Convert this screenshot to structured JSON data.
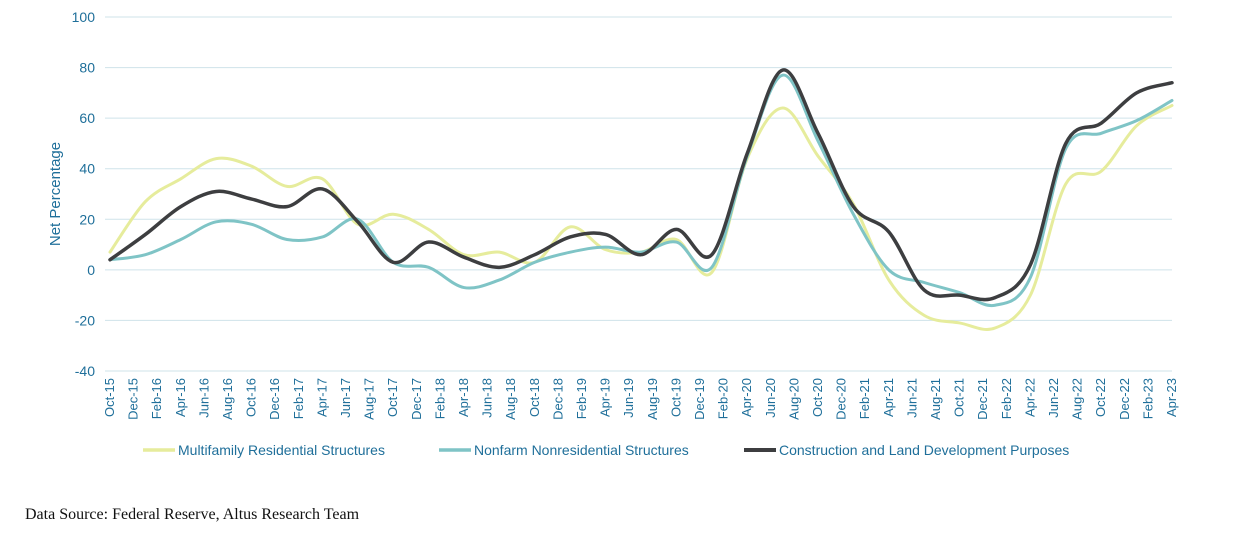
{
  "chart_data": {
    "type": "line",
    "ylabel": "Net Percentage",
    "xlabel": "",
    "ylim": [
      -40,
      100
    ],
    "yticks": [
      100,
      80,
      60,
      40,
      20,
      0,
      -20,
      -40
    ],
    "grid": true,
    "legend_position": "bottom",
    "x": [
      "Oct-15",
      "Nov-15",
      "Dec-15",
      "Jan-16",
      "Feb-16",
      "Mar-16",
      "Apr-16",
      "May-16",
      "Jun-16",
      "Jul-16",
      "Aug-16",
      "Sep-16",
      "Oct-16",
      "Nov-16",
      "Dec-16",
      "Jan-17",
      "Feb-17",
      "Mar-17",
      "Apr-17",
      "May-17",
      "Jun-17",
      "Jul-17",
      "Aug-17",
      "Sep-17",
      "Oct-17",
      "Nov-17",
      "Dec-17",
      "Jan-18",
      "Feb-18",
      "Mar-18",
      "Apr-18",
      "May-18",
      "Jun-18",
      "Jul-18",
      "Aug-18",
      "Sep-18",
      "Oct-18",
      "Nov-18",
      "Dec-18",
      "Jan-19",
      "Feb-19",
      "Mar-19",
      "Apr-19",
      "May-19",
      "Jun-19",
      "Jul-19",
      "Aug-19",
      "Sep-19",
      "Oct-19",
      "Nov-19",
      "Dec-19",
      "Jan-20",
      "Feb-20",
      "Mar-20",
      "Apr-20",
      "May-20",
      "Jun-20",
      "Jul-20",
      "Aug-20",
      "Sep-20",
      "Oct-20",
      "Nov-20",
      "Dec-20",
      "Jan-21",
      "Feb-21",
      "Mar-21",
      "Apr-21",
      "May-21",
      "Jun-21",
      "Jul-21",
      "Aug-21",
      "Sep-21",
      "Oct-21",
      "Nov-21",
      "Dec-21",
      "Jan-22",
      "Feb-22",
      "Mar-22",
      "Apr-22",
      "May-22",
      "Jun-22",
      "Jul-22",
      "Aug-22",
      "Sep-22",
      "Oct-22",
      "Nov-22",
      "Dec-22",
      "Jan-23",
      "Feb-23",
      "Mar-23",
      "Apr-23"
    ],
    "tick_labels": [
      "Oct-15",
      "Dec-15",
      "Feb-16",
      "Apr-16",
      "Jun-16",
      "Aug-16",
      "Oct-16",
      "Dec-16",
      "Feb-17",
      "Apr-17",
      "Jun-17",
      "Aug-17",
      "Oct-17",
      "Dec-17",
      "Feb-18",
      "Apr-18",
      "Jun-18",
      "Aug-18",
      "Oct-18",
      "Dec-18",
      "Feb-19",
      "Apr-19",
      "Jun-19",
      "Aug-19",
      "Oct-19",
      "Dec-19",
      "Feb-20",
      "Apr-20",
      "Jun-20",
      "Aug-20",
      "Oct-20",
      "Dec-20",
      "Feb-21",
      "Apr-21",
      "Jun-21",
      "Aug-21",
      "Oct-21",
      "Dec-21",
      "Feb-22",
      "Apr-22",
      "Jun-22",
      "Aug-22",
      "Oct-22",
      "Dec-22",
      "Feb-23",
      "Apr-23"
    ],
    "series": [
      {
        "name": "Multifamily Residential Structures",
        "color": "#e6ec9c",
        "x": [
          "Oct-15",
          "Jan-16",
          "Apr-16",
          "Jul-16",
          "Oct-16",
          "Jan-17",
          "Apr-17",
          "Jul-17",
          "Oct-17",
          "Jan-18",
          "Apr-18",
          "Jul-18",
          "Oct-18",
          "Jan-19",
          "Apr-19",
          "Jul-19",
          "Oct-19",
          "Jan-20",
          "Apr-20",
          "Jul-20",
          "Oct-20",
          "Jan-21",
          "Apr-21",
          "Jul-21",
          "Oct-21",
          "Jan-22",
          "Apr-22",
          "Jul-22",
          "Oct-22",
          "Jan-23",
          "Apr-23"
        ],
        "values": [
          7,
          27,
          36,
          44,
          41,
          33,
          36,
          18,
          22,
          16,
          6,
          7,
          3,
          17,
          8,
          7,
          12,
          -1,
          44,
          64,
          45,
          26,
          -4,
          -18,
          -21,
          -23,
          -10,
          34,
          39,
          57,
          65
        ]
      },
      {
        "name": "Nonfarm Nonresidential Structures",
        "color": "#7fc4c6",
        "x": [
          "Oct-15",
          "Jan-16",
          "Apr-16",
          "Jul-16",
          "Oct-16",
          "Jan-17",
          "Apr-17",
          "Jul-17",
          "Oct-17",
          "Jan-18",
          "Apr-18",
          "Jul-18",
          "Oct-18",
          "Jan-19",
          "Apr-19",
          "Jul-19",
          "Oct-19",
          "Jan-20",
          "Apr-20",
          "Jul-20",
          "Oct-20",
          "Jan-21",
          "Apr-21",
          "Jul-21",
          "Oct-21",
          "Jan-22",
          "Apr-22",
          "Jul-22",
          "Oct-22",
          "Jan-23",
          "Apr-23"
        ],
        "values": [
          4,
          6,
          12,
          19,
          18,
          12,
          13,
          20,
          3,
          1,
          -7,
          -4,
          3,
          7,
          9,
          7,
          11,
          1,
          45,
          77,
          51,
          22,
          0,
          -5,
          -9,
          -14,
          -3,
          48,
          54,
          59,
          67
        ]
      },
      {
        "name": "Construction and Land Development Purposes",
        "color": "#3d3e40",
        "x": [
          "Oct-15",
          "Jan-16",
          "Apr-16",
          "Jul-16",
          "Oct-16",
          "Jan-17",
          "Apr-17",
          "Jul-17",
          "Oct-17",
          "Jan-18",
          "Apr-18",
          "Jul-18",
          "Oct-18",
          "Jan-19",
          "Apr-19",
          "Jul-19",
          "Oct-19",
          "Jan-20",
          "Apr-20",
          "Jul-20",
          "Oct-20",
          "Jan-21",
          "Apr-21",
          "Jul-21",
          "Oct-21",
          "Jan-22",
          "Apr-22",
          "Jul-22",
          "Oct-22",
          "Jan-23",
          "Apr-23"
        ],
        "values": [
          4,
          14,
          25,
          31,
          28,
          25,
          32,
          19,
          3,
          11,
          5,
          1,
          6,
          13,
          14,
          6,
          16,
          6,
          46,
          79,
          54,
          25,
          15,
          -8,
          -10,
          -11,
          2,
          50,
          58,
          70,
          74
        ]
      }
    ]
  },
  "footer": {
    "source_text": "Data Source: Federal Reserve, Altus Research Team"
  }
}
